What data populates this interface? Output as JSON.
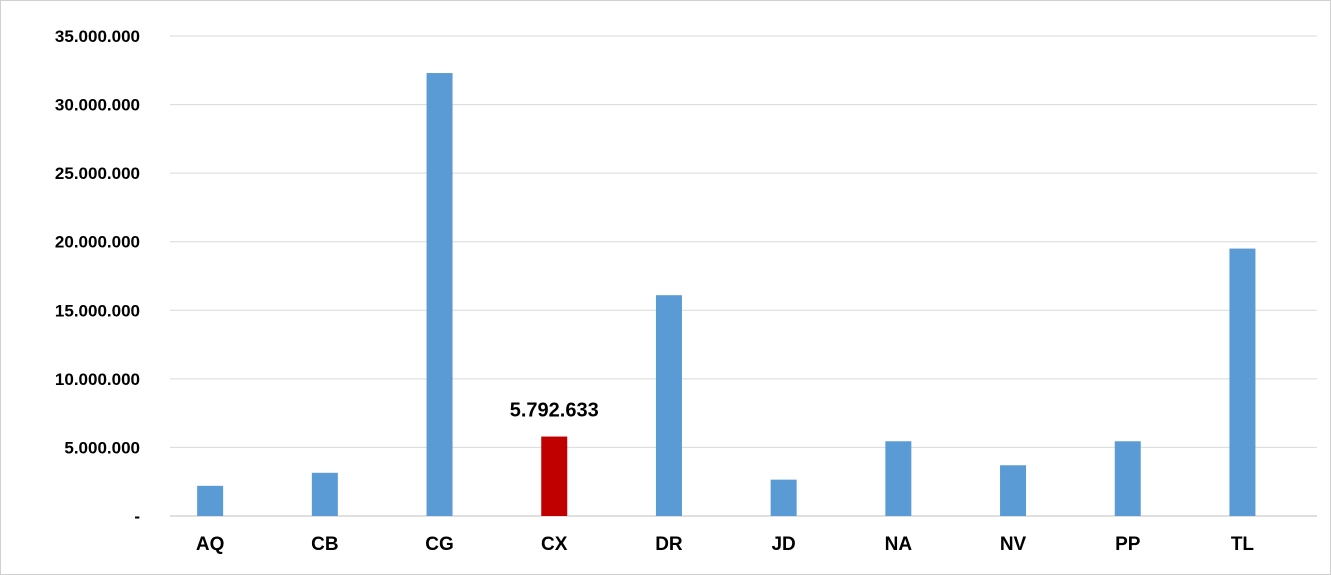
{
  "chart_data": {
    "type": "bar",
    "title": "",
    "categories": [
      "AQ",
      "CB",
      "CG",
      "CX",
      "DR",
      "JD",
      "NA",
      "NV",
      "PP",
      "TL"
    ],
    "values": [
      2200000,
      3150000,
      32300000,
      5792633,
      16100000,
      2650000,
      5450000,
      3700000,
      5450000,
      19500000
    ],
    "ylim": [
      0,
      35000000
    ],
    "yticks": [
      0,
      5000000,
      10000000,
      15000000,
      20000000,
      25000000,
      30000000,
      35000000
    ],
    "ytick_labels": [
      "-",
      "5.000.000",
      "10.000.000",
      "15.000.000",
      "20.000.000",
      "25.000.000",
      "30.000.000",
      "35.000.000"
    ],
    "xlabel": "",
    "ylabel": "",
    "grid": true,
    "legend": "none",
    "colors": {
      "bar": "#5b9bd5",
      "highlight": "#c00000",
      "grid": "#d9d9d9",
      "axis": "#bfbfbf"
    },
    "highlight_index": 3,
    "data_labels": [
      {
        "index": 3,
        "text": "5.792.633"
      }
    ]
  }
}
